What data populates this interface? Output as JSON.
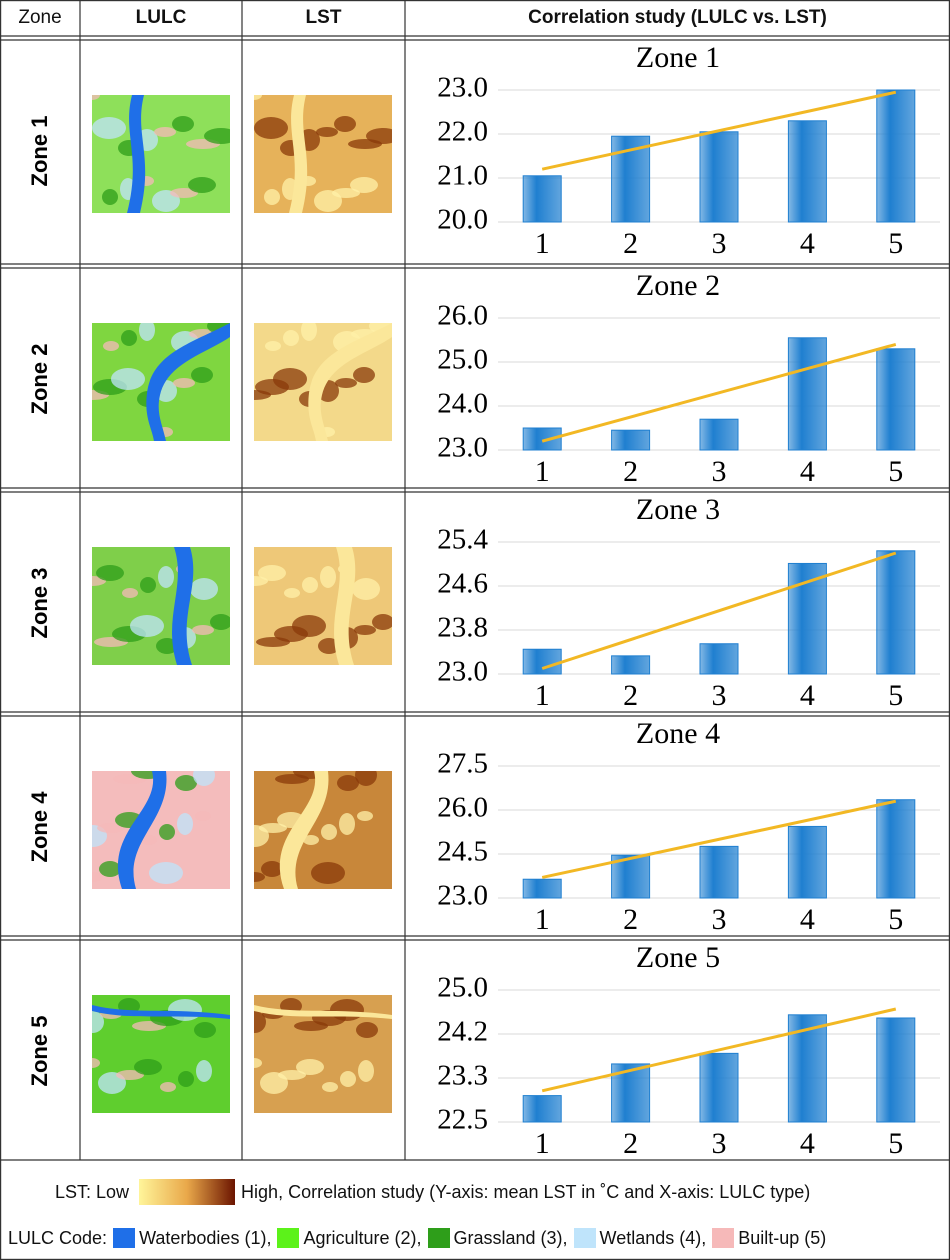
{
  "table": {
    "header": [
      "Zone",
      "LULC",
      "LST",
      "Correlation study (LULC vs. LST)"
    ],
    "zones": [
      "Zone 1",
      "Zone 2",
      "Zone 3",
      "Zone 4",
      "Zone 5"
    ]
  },
  "chart_data": [
    {
      "type": "bar",
      "title": "Zone 1",
      "categories": [
        "1",
        "2",
        "3",
        "4",
        "5"
      ],
      "values": [
        21.05,
        21.95,
        22.05,
        22.3,
        23.0
      ],
      "color": "#1f7fd0",
      "trend": {
        "color": "#f2b824",
        "values": [
          21.2,
          22.95
        ]
      },
      "ylim": [
        20,
        23
      ],
      "yticks": [
        {
          "value": 20,
          "label": "20.0"
        },
        {
          "value": 21,
          "label": "21.0"
        },
        {
          "value": 22,
          "label": "22.0"
        },
        {
          "value": 23,
          "label": "23.0"
        }
      ],
      "grid": true
    },
    {
      "type": "bar",
      "title": "Zone 2",
      "categories": [
        "1",
        "2",
        "3",
        "4",
        "5"
      ],
      "values": [
        23.5,
        23.45,
        23.7,
        25.55,
        25.3
      ],
      "color": "#1f7fd0",
      "trend": {
        "color": "#f2b824",
        "values": [
          23.2,
          25.4
        ]
      },
      "ylim": [
        23,
        26
      ],
      "yticks": [
        {
          "value": 23,
          "label": "23.0"
        },
        {
          "value": 24,
          "label": "24.0"
        },
        {
          "value": 25,
          "label": "25.0"
        },
        {
          "value": 26,
          "label": "26.0"
        }
      ],
      "grid": true
    },
    {
      "type": "bar",
      "title": "Zone 3",
      "categories": [
        "1",
        "2",
        "3",
        "4",
        "5"
      ],
      "values": [
        23.45,
        23.33,
        23.55,
        25.01,
        25.24
      ],
      "color": "#1f7fd0",
      "trend": {
        "color": "#f2b824",
        "values": [
          23.1,
          25.2
        ]
      },
      "ylim": [
        23,
        25.4
      ],
      "yticks": [
        {
          "value": 23,
          "label": "23.0"
        },
        23.8,
        24.6,
        25.4
      ],
      "grid": true
    },
    {
      "type": "bar",
      "title": "Zone 4",
      "categories": [
        "1",
        "2",
        "3",
        "4",
        "5"
      ],
      "values": [
        23.64,
        24.46,
        24.76,
        25.44,
        26.35
      ],
      "color": "#1f7fd0",
      "trend": {
        "color": "#f2b824",
        "values": [
          23.7,
          26.3
        ]
      },
      "ylim": [
        23,
        27.5
      ],
      "yticks": [
        {
          "value": 23,
          "label": "23.0"
        },
        24.5,
        {
          "value": 26,
          "label": "26.0"
        },
        27.5
      ],
      "grid": true
    },
    {
      "type": "bar",
      "title": "Zone 5",
      "categories": [
        "1",
        "2",
        "3",
        "4",
        "5"
      ],
      "values": [
        23.0,
        23.6,
        23.8,
        24.53,
        24.47
      ],
      "color": "#1f7fd0",
      "trend": {
        "color": "#f2b824",
        "values": [
          23.09,
          24.64
        ]
      },
      "ylim": [
        22.5,
        25
      ],
      "yticks": [
        22.5,
        {
          "value": 23.333,
          "label": "23.3"
        },
        {
          "value": 24.167,
          "label": "24.2"
        },
        {
          "value": 25,
          "label": "25.0"
        }
      ],
      "grid": true
    }
  ],
  "legend": {
    "lst_low": "LST: Low",
    "lst_high": "High, Correlation study (Y-axis: mean LST in ˚C and X-axis: LULC type)",
    "lst_colors": [
      "#fff59a",
      "#e9a84a",
      "#6b1400"
    ],
    "lulc_title": "LULC Code:",
    "lulc_items": [
      {
        "label": "Waterbodies (1),",
        "color": "#1f6fe8"
      },
      {
        "label": "Agriculture (2),",
        "color": "#5cf21a"
      },
      {
        "label": "Grassland (3),",
        "color": "#2e9e1a"
      },
      {
        "label": "Wetlands (4),",
        "color": "#bfe4fb"
      },
      {
        "label": "Built-up (5)",
        "color": "#f6b9b9"
      }
    ]
  }
}
